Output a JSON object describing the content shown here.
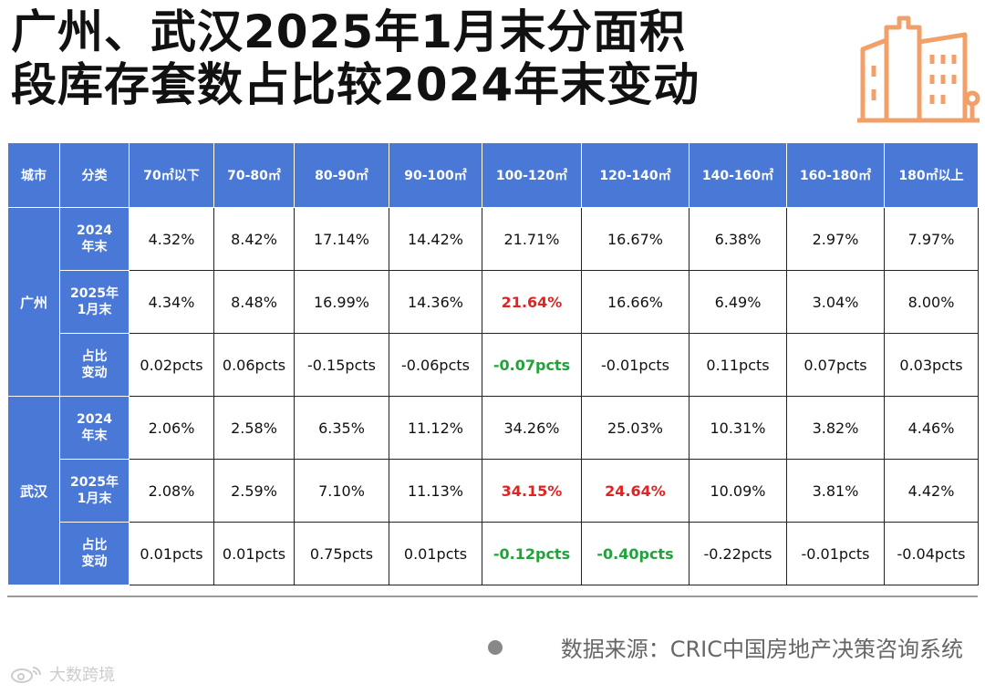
{
  "title": {
    "line1": "广州、武汉2025年1月末分面积",
    "line2": "段库存套数占比较2024年末变动"
  },
  "header": [
    "城市",
    "分类",
    "70㎡以下",
    "70-80㎡",
    "80-90㎡",
    "90-100㎡",
    "100-120㎡",
    "120-140㎡",
    "140-160㎡",
    "160-180㎡",
    "180㎡以上"
  ],
  "cities": [
    {
      "name": "广州",
      "rows": [
        {
          "label": "2024\n年末",
          "values": [
            "4.32%",
            "8.42%",
            "17.14%",
            "14.42%",
            "21.71%",
            "16.67%",
            "6.38%",
            "2.97%",
            "7.97%"
          ]
        },
        {
          "label": "2025年\n1月末",
          "values": [
            "4.34%",
            "8.48%",
            "16.99%",
            "14.36%",
            "21.64%",
            "16.66%",
            "6.49%",
            "3.04%",
            "8.00%"
          ]
        },
        {
          "label": "占比\n变动",
          "values": [
            "0.02pcts",
            "0.06pcts",
            "-0.15pcts",
            "-0.06pcts",
            "-0.07pcts",
            "-0.01pcts",
            "0.11pcts",
            "0.07pcts",
            "0.03pcts"
          ]
        }
      ]
    },
    {
      "name": "武汉",
      "rows": [
        {
          "label": "2024\n年末",
          "values": [
            "2.06%",
            "2.58%",
            "6.35%",
            "11.12%",
            "34.26%",
            "25.03%",
            "10.31%",
            "3.82%",
            "4.46%"
          ]
        },
        {
          "label": "2025年\n1月末",
          "values": [
            "2.08%",
            "2.59%",
            "7.10%",
            "11.13%",
            "34.15%",
            "24.64%",
            "10.09%",
            "3.81%",
            "4.42%"
          ]
        },
        {
          "label": "占比\n变动",
          "values": [
            "0.01pcts",
            "0.01pcts",
            "0.75pcts",
            "0.01pcts",
            "-0.12pcts",
            "-0.40pcts",
            "-0.22pcts",
            "-0.01pcts",
            "-0.04pcts"
          ]
        }
      ]
    }
  ],
  "highlights": {
    "red": [
      "0-1-4",
      "1-1-4",
      "1-1-5"
    ],
    "green": [
      "0-2-4",
      "1-2-4",
      "1-2-5"
    ]
  },
  "colors": {
    "header_bg": "#4a78d6",
    "red": "#e02424",
    "green": "#22a33a",
    "icon": "#f0a068"
  },
  "source": "数据来源：CRIC中国房地产决策咨询系统",
  "watermark": "大数跨境",
  "icons": {
    "building": "building-icon",
    "bullet": "bullet-dot-icon",
    "weibo": "weibo-icon"
  }
}
